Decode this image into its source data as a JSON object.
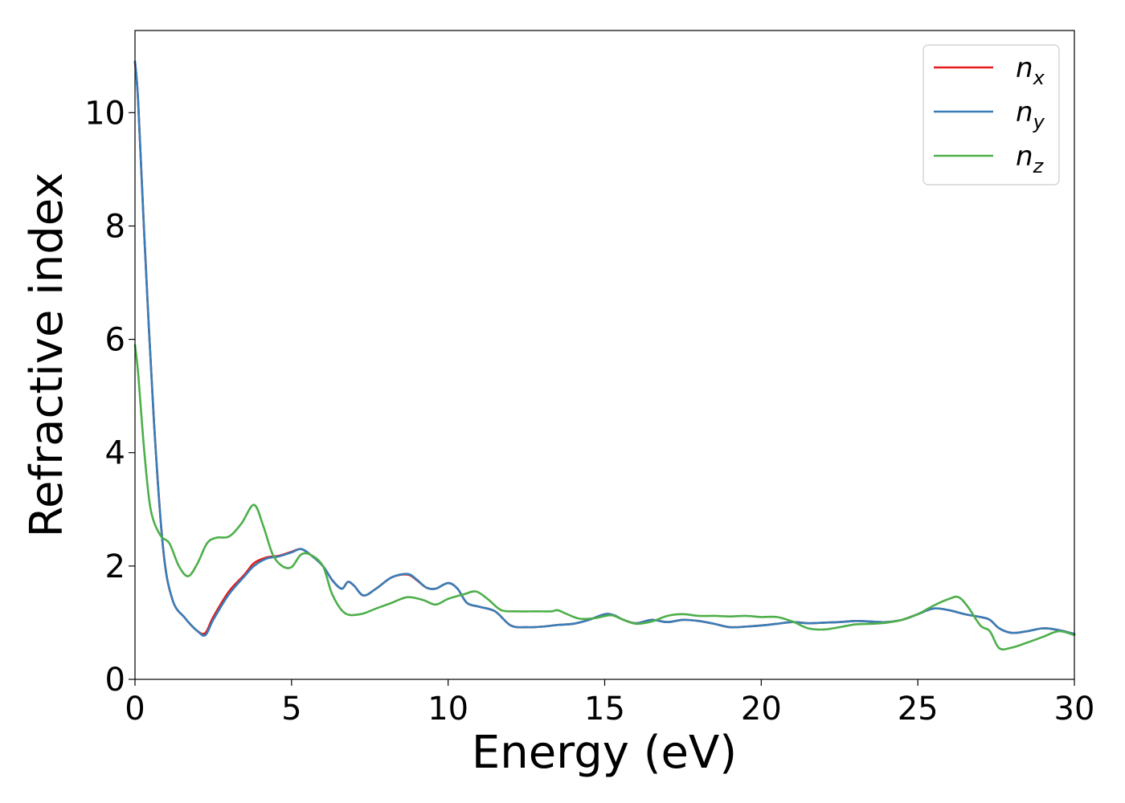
{
  "chart_data": {
    "type": "line",
    "xlabel": "Energy (eV)",
    "ylabel": "Refractive index",
    "xlim": [
      0,
      30
    ],
    "ylim": [
      0,
      11.45
    ],
    "x_ticks": [
      "0",
      "5",
      "10",
      "15",
      "20",
      "25",
      "30"
    ],
    "y_ticks": [
      "0",
      "2",
      "4",
      "6",
      "8",
      "10"
    ],
    "grid": false,
    "legend_position": "top-right",
    "series": [
      {
        "name": "n_x",
        "label_base": "n",
        "label_sub": "x",
        "color": "#e41a1c",
        "x": [
          0,
          0.1,
          0.3,
          0.6,
          0.9,
          1.2,
          1.6,
          2.0,
          2.25,
          2.5,
          3.0,
          3.5,
          3.8,
          4.2,
          4.6,
          5.0,
          5.3,
          5.6,
          6.0,
          6.3,
          6.6,
          6.8,
          7.0,
          7.3,
          7.7,
          8.2,
          8.7,
          9.0,
          9.3,
          9.6,
          10.0,
          10.3,
          10.6,
          11.0,
          11.5,
          12.0,
          12.5,
          13.0,
          13.5,
          14.0,
          14.5,
          15.0,
          15.3,
          15.6,
          16.0,
          16.5,
          17.0,
          17.5,
          18.0,
          18.5,
          19.0,
          19.5,
          20.0,
          20.5,
          21.0,
          21.5,
          22.0,
          22.5,
          23.0,
          23.5,
          24.0,
          24.5,
          25.0,
          25.5,
          26.0,
          26.5,
          27.0,
          27.3,
          27.6,
          28.0,
          28.5,
          29.0,
          29.5,
          30.0
        ],
        "values": [
          10.9,
          10.2,
          7.8,
          4.6,
          2.3,
          1.4,
          1.08,
          0.85,
          0.82,
          1.1,
          1.55,
          1.85,
          2.05,
          2.15,
          2.18,
          2.25,
          2.3,
          2.2,
          2.0,
          1.75,
          1.6,
          1.72,
          1.65,
          1.48,
          1.6,
          1.8,
          1.85,
          1.75,
          1.62,
          1.6,
          1.7,
          1.6,
          1.35,
          1.28,
          1.2,
          0.95,
          0.92,
          0.93,
          0.96,
          0.98,
          1.05,
          1.15,
          1.13,
          1.05,
          0.99,
          1.05,
          1.01,
          1.05,
          1.03,
          0.98,
          0.92,
          0.93,
          0.95,
          0.98,
          1.01,
          0.99,
          1.0,
          1.01,
          1.03,
          1.02,
          1.01,
          1.05,
          1.15,
          1.25,
          1.22,
          1.15,
          1.1,
          1.05,
          0.9,
          0.82,
          0.85,
          0.9,
          0.87,
          0.8
        ]
      },
      {
        "name": "n_y",
        "label_base": "n",
        "label_sub": "y",
        "color": "#377eb8",
        "x": [
          0,
          0.1,
          0.3,
          0.6,
          0.9,
          1.2,
          1.6,
          2.0,
          2.25,
          2.5,
          3.0,
          3.5,
          3.8,
          4.2,
          4.6,
          5.0,
          5.3,
          5.6,
          6.0,
          6.3,
          6.6,
          6.8,
          7.0,
          7.3,
          7.7,
          8.2,
          8.7,
          9.0,
          9.3,
          9.6,
          10.0,
          10.3,
          10.6,
          11.0,
          11.5,
          12.0,
          12.5,
          13.0,
          13.5,
          14.0,
          14.5,
          15.0,
          15.3,
          15.6,
          16.0,
          16.5,
          17.0,
          17.5,
          18.0,
          18.5,
          19.0,
          19.5,
          20.0,
          20.5,
          21.0,
          21.5,
          22.0,
          22.5,
          23.0,
          23.5,
          24.0,
          24.5,
          25.0,
          25.5,
          26.0,
          26.5,
          27.0,
          27.3,
          27.6,
          28.0,
          28.5,
          29.0,
          29.5,
          30.0
        ],
        "values": [
          10.9,
          10.2,
          7.8,
          4.6,
          2.3,
          1.4,
          1.08,
          0.85,
          0.78,
          1.05,
          1.5,
          1.82,
          2.0,
          2.13,
          2.17,
          2.24,
          2.3,
          2.2,
          2.0,
          1.75,
          1.6,
          1.72,
          1.65,
          1.48,
          1.6,
          1.8,
          1.86,
          1.76,
          1.62,
          1.6,
          1.7,
          1.6,
          1.35,
          1.28,
          1.2,
          0.95,
          0.92,
          0.93,
          0.96,
          0.98,
          1.05,
          1.15,
          1.13,
          1.05,
          0.99,
          1.05,
          1.01,
          1.05,
          1.03,
          0.98,
          0.92,
          0.93,
          0.95,
          0.98,
          1.01,
          0.99,
          1.0,
          1.01,
          1.03,
          1.02,
          1.01,
          1.05,
          1.15,
          1.25,
          1.22,
          1.15,
          1.1,
          1.05,
          0.9,
          0.82,
          0.85,
          0.9,
          0.87,
          0.8
        ]
      },
      {
        "name": "n_z",
        "label_base": "n",
        "label_sub": "z",
        "color": "#4daf4a",
        "x": [
          0,
          0.1,
          0.3,
          0.5,
          0.8,
          1.1,
          1.4,
          1.7,
          2.0,
          2.3,
          2.6,
          3.0,
          3.4,
          3.8,
          4.1,
          4.4,
          4.7,
          5.0,
          5.3,
          5.6,
          6.0,
          6.3,
          6.7,
          7.2,
          7.7,
          8.2,
          8.7,
          9.2,
          9.6,
          10.0,
          10.5,
          10.9,
          11.3,
          11.7,
          12.2,
          12.8,
          13.3,
          13.5,
          13.8,
          14.2,
          14.7,
          15.2,
          15.6,
          16.0,
          16.5,
          17.0,
          17.5,
          18.0,
          18.5,
          19.0,
          19.5,
          20.0,
          20.5,
          21.0,
          21.5,
          22.0,
          22.5,
          23.0,
          23.5,
          24.0,
          24.5,
          25.0,
          25.5,
          26.0,
          26.3,
          26.6,
          27.0,
          27.3,
          27.6,
          28.0,
          28.5,
          29.0,
          29.5,
          30.0
        ],
        "values": [
          5.9,
          5.4,
          4.0,
          3.0,
          2.55,
          2.4,
          2.0,
          1.82,
          2.05,
          2.4,
          2.5,
          2.52,
          2.75,
          3.08,
          2.7,
          2.2,
          2.0,
          1.98,
          2.2,
          2.2,
          2.0,
          1.5,
          1.17,
          1.15,
          1.25,
          1.35,
          1.45,
          1.4,
          1.32,
          1.42,
          1.5,
          1.55,
          1.4,
          1.22,
          1.2,
          1.2,
          1.2,
          1.22,
          1.15,
          1.07,
          1.08,
          1.13,
          1.05,
          0.98,
          1.02,
          1.12,
          1.15,
          1.12,
          1.12,
          1.11,
          1.12,
          1.1,
          1.1,
          1.02,
          0.9,
          0.88,
          0.92,
          0.97,
          0.98,
          1.0,
          1.05,
          1.15,
          1.3,
          1.42,
          1.45,
          1.28,
          0.95,
          0.85,
          0.55,
          0.56,
          0.65,
          0.75,
          0.85,
          0.78
        ]
      }
    ]
  }
}
